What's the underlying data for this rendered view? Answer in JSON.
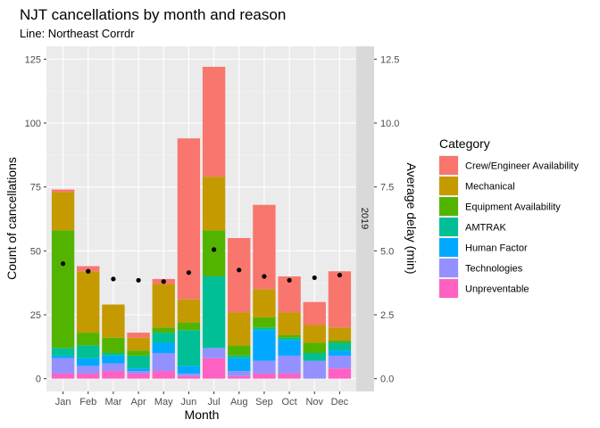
{
  "chart_data": {
    "type": "bar",
    "stacked": true,
    "title": "NJT cancellations by month and reason",
    "subtitle": "Line:  Northeast Corrdr",
    "xlabel": "Month",
    "ylabel": "Count of cancellations",
    "y2label": "Average delay (min)",
    "facet_label": "2019",
    "categories": [
      "Jan",
      "Feb",
      "Mar",
      "Apr",
      "May",
      "Jun",
      "Jul",
      "Aug",
      "Sep",
      "Oct",
      "Nov",
      "Dec"
    ],
    "ylim": [
      0,
      125
    ],
    "yticks": [
      0,
      25,
      50,
      75,
      100,
      125
    ],
    "y2lim": [
      0,
      12.5
    ],
    "y2ticks": [
      "0.0",
      "2.5",
      "5.0",
      "7.5",
      "10.0",
      "12.5"
    ],
    "legend_title": "Category",
    "legend_position": "right",
    "grid": true,
    "series": [
      {
        "name": "Unpreventable",
        "color": "#FF61C3",
        "values": [
          2,
          2,
          3,
          2,
          3,
          1,
          8,
          1,
          2,
          2,
          0,
          4
        ]
      },
      {
        "name": "Technologies",
        "color": "#9590FF",
        "values": [
          6,
          3,
          3,
          1,
          7,
          1,
          4,
          2,
          5,
          7,
          7,
          5
        ]
      },
      {
        "name": "Human Factor",
        "color": "#00A9FF",
        "values": [
          1,
          3,
          3,
          1,
          4,
          3,
          0,
          5,
          12,
          6,
          0,
          2
        ]
      },
      {
        "name": "AMTRAK",
        "color": "#00BF96",
        "values": [
          3,
          5,
          1,
          5,
          4,
          14,
          28,
          1,
          1,
          1,
          3,
          3
        ]
      },
      {
        "name": "Equipment Availability",
        "color": "#53B400",
        "values": [
          46,
          5,
          6,
          2,
          2,
          3,
          18,
          4,
          4,
          1,
          4,
          1
        ]
      },
      {
        "name": "Mechanical",
        "color": "#C49A00",
        "values": [
          15,
          24,
          13,
          5,
          17,
          9,
          21,
          13,
          11,
          9,
          7,
          5
        ]
      },
      {
        "name": "Crew/Engineer Availability",
        "color": "#F8766D",
        "values": [
          1,
          2,
          0,
          2,
          2,
          63,
          43,
          29,
          33,
          14,
          9,
          22
        ]
      }
    ],
    "avg_delay": [
      4.5,
      4.2,
      3.9,
      3.85,
      3.8,
      4.15,
      5.05,
      4.25,
      4.0,
      3.85,
      3.95,
      4.05
    ],
    "legend_order": [
      "Crew/Engineer Availability",
      "Mechanical",
      "Equipment Availability",
      "AMTRAK",
      "Human Factor",
      "Technologies",
      "Unpreventable"
    ]
  }
}
